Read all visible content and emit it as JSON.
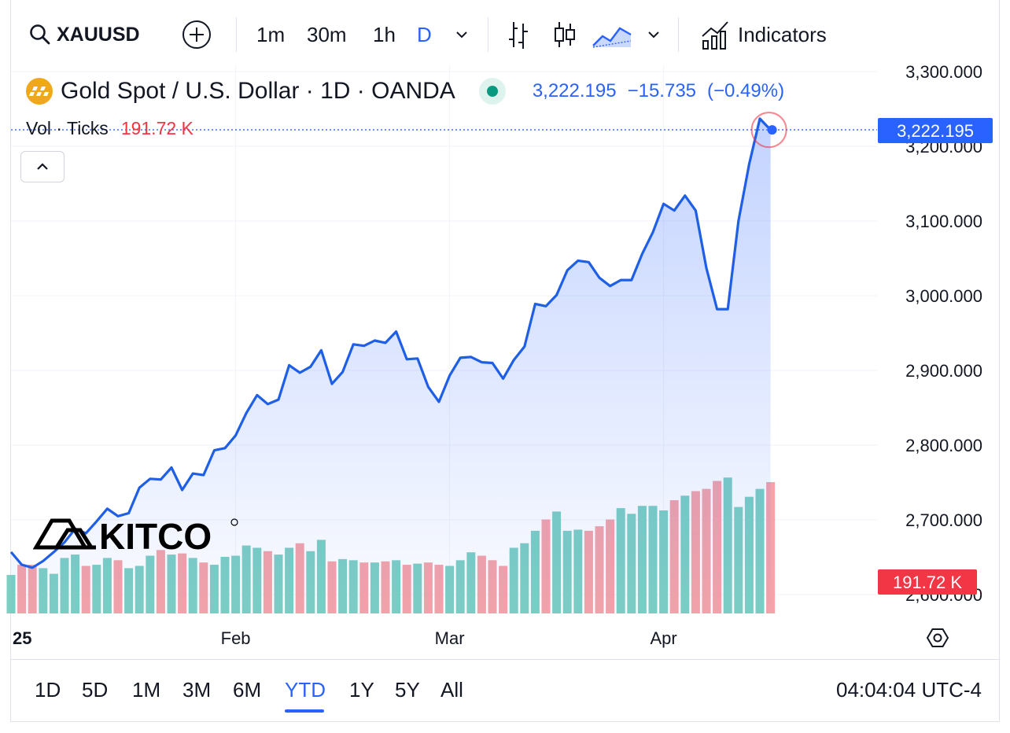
{
  "toolbar": {
    "symbol": "XAUUSD",
    "intervals": [
      "1m",
      "30m",
      "1h",
      "D"
    ],
    "active_interval": "D",
    "indicators_label": "Indicators",
    "icons": [
      "search-icon",
      "add-icon",
      "chevron-down-icon",
      "bars-icon",
      "candles-icon",
      "area-icon",
      "chevron-down-icon",
      "indicators-icon"
    ]
  },
  "legend": {
    "title": "Gold Spot / U.S. Dollar · 1D · OANDA",
    "price": "3,222.195",
    "change": "−15.735",
    "change_pct": "(−0.49%)",
    "vol_label": "Vol · Ticks",
    "vol_value": "191.72 K"
  },
  "price_label": "3,222.195",
  "vol_label_right": "191.72 K",
  "watermark": "KITCO",
  "colors": {
    "line": "#1f5fe6",
    "up_volume": "#7dcfc3",
    "down_volume": "#f5a3a8",
    "accent": "#2962ff",
    "down": "#f23645"
  },
  "ranges": [
    "1D",
    "5D",
    "1M",
    "3M",
    "6M",
    "YTD",
    "1Y",
    "5Y",
    "All"
  ],
  "active_range": "YTD",
  "clock": "04:04:04 UTC-4",
  "chart_data": {
    "type": "line",
    "x_tick_labels": [
      "25",
      "Feb",
      "Mar",
      "Apr"
    ],
    "y_tick_labels": [
      "2,600.000",
      "2,700.000",
      "2,800.000",
      "2,900.000",
      "3,000.000",
      "3,100.000",
      "3,200.000",
      "3,300.000"
    ],
    "ylim": [
      2600,
      3300
    ],
    "series": [
      {
        "values": [
          2657,
          2640,
          2636,
          2645,
          2657,
          2670,
          2688,
          2682,
          2698,
          2715,
          2705,
          2709,
          2743,
          2755,
          2754,
          2770,
          2740,
          2762,
          2760,
          2793,
          2796,
          2813,
          2843,
          2867,
          2855,
          2861,
          2907,
          2897,
          2905,
          2927,
          2882,
          2898,
          2935,
          2933,
          2940,
          2937,
          2952,
          2915,
          2916,
          2878,
          2858,
          2893,
          2917,
          2918,
          2911,
          2910,
          2889,
          2914,
          2932,
          2989,
          2986,
          3001,
          3034,
          3047,
          3045,
          3024,
          3013,
          3021,
          3021,
          3056,
          3085,
          3123,
          3114,
          3134,
          3114,
          3037,
          2982,
          2982,
          3100,
          3176,
          3237,
          3222
        ]
      },
      {
        "values": [
          68,
          86,
          86,
          80,
          70,
          98,
          104,
          84,
          86,
          98,
          94,
          80,
          84,
          102,
          112,
          104,
          106,
          98,
          90,
          86,
          100,
          102,
          120,
          116,
          110,
          104,
          116,
          124,
          110,
          130,
          92,
          96,
          94,
          90,
          90,
          92,
          94,
          86,
          88,
          90,
          86,
          84,
          94,
          108,
          102,
          94,
          84,
          116,
          124,
          146,
          166,
          180,
          146,
          148,
          146,
          154,
          166,
          186,
          176,
          190,
          190,
          182,
          200,
          208,
          216,
          220,
          234,
          240,
          188,
          206,
          220,
          232
        ]
      }
    ]
  }
}
